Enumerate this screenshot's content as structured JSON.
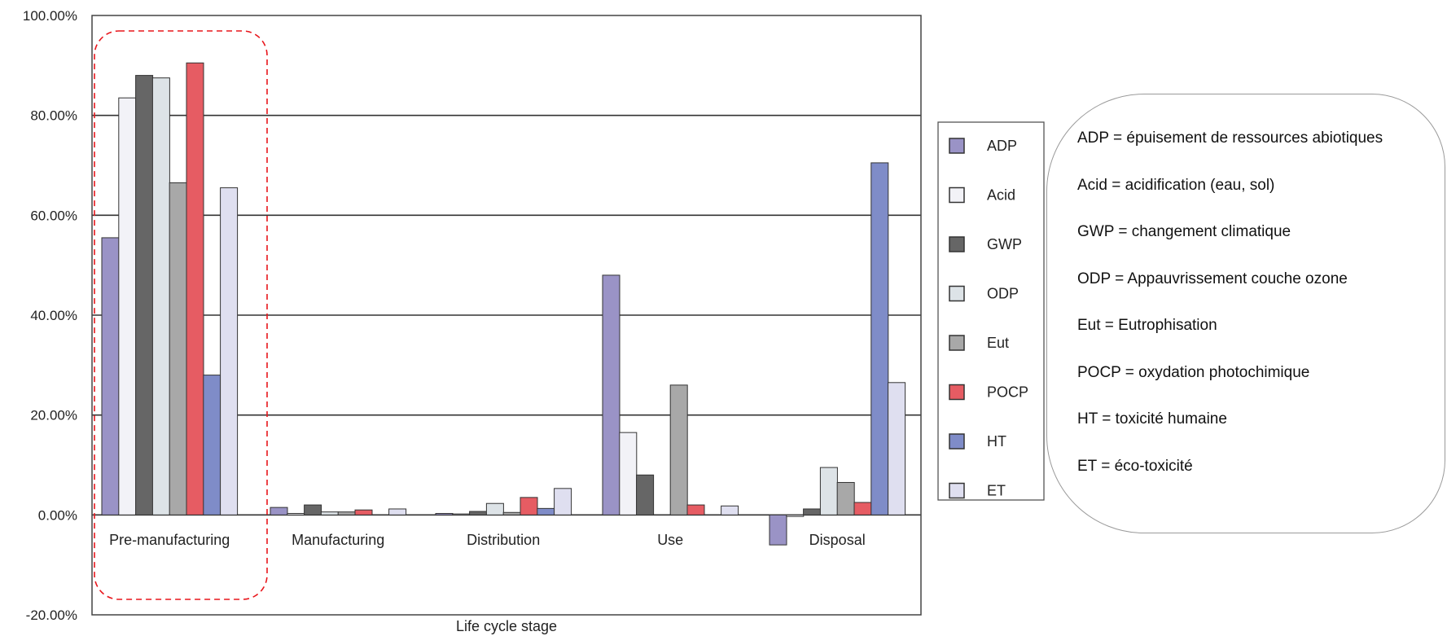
{
  "chart_data": {
    "type": "bar",
    "title": "",
    "xlabel": "Life cycle stage",
    "ylabel": "",
    "ylim": [
      -20,
      100
    ],
    "yticks": [
      "-20.00%",
      "0.00%",
      "20.00%",
      "40.00%",
      "60.00%",
      "80.00%",
      "100.00%"
    ],
    "gridlines": "horizontal, major ticks",
    "legend_position": "right",
    "categories": [
      "Pre-manufacturing",
      "Manufacturing",
      "Distribution",
      "Use",
      "Disposal"
    ],
    "highlight": {
      "category": "Pre-manufacturing",
      "style": "red dashed rounded box"
    },
    "series": [
      {
        "name": "ADP",
        "color": "#9a93c6",
        "values": [
          55.5,
          1.5,
          0.3,
          48,
          -6
        ]
      },
      {
        "name": "Acid",
        "color": "#f2f2f7",
        "values": [
          83.5,
          0.3,
          0.2,
          16.5,
          -0.3
        ]
      },
      {
        "name": "GWP",
        "color": "#666666",
        "values": [
          88,
          2,
          0.7,
          8,
          1.2
        ]
      },
      {
        "name": "ODP",
        "color": "#dde3e7",
        "values": [
          87.5,
          0.6,
          2.3,
          0,
          9.5
        ]
      },
      {
        "name": "Eut",
        "color": "#a8a8a8",
        "values": [
          66.5,
          0.6,
          0.5,
          26,
          6.5
        ]
      },
      {
        "name": "POCP",
        "color": "#e65c63",
        "values": [
          90.5,
          1,
          3.5,
          2,
          2.5
        ]
      },
      {
        "name": "HT",
        "color": "#7f8cc8",
        "values": [
          28,
          0,
          1.3,
          0,
          70.5
        ]
      },
      {
        "name": "ET",
        "color": "#dfdff0",
        "values": [
          65.5,
          1.2,
          5.3,
          1.8,
          26.5
        ]
      }
    ]
  },
  "glossary": [
    "ADP = épuisement de ressources abiotiques",
    "Acid = acidification (eau, sol)",
    "GWP = changement climatique",
    "ODP = Appauvrissement couche ozone",
    "Eut = Eutrophisation",
    "POCP = oxydation photochimique",
    "HT = toxicité humaine",
    "ET = éco-toxicité"
  ]
}
